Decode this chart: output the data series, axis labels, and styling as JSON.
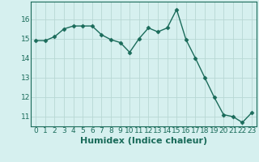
{
  "x": [
    0,
    1,
    2,
    3,
    4,
    5,
    6,
    7,
    8,
    9,
    10,
    11,
    12,
    13,
    14,
    15,
    16,
    17,
    18,
    19,
    20,
    21,
    22,
    23
  ],
  "y": [
    14.9,
    14.9,
    15.1,
    15.5,
    15.65,
    15.65,
    15.65,
    15.2,
    14.95,
    14.8,
    14.3,
    15.0,
    15.55,
    15.35,
    15.55,
    16.5,
    14.95,
    14.0,
    13.0,
    12.0,
    11.1,
    11.0,
    10.7,
    11.2
  ],
  "line_color": "#1a6b5a",
  "marker": "D",
  "marker_size": 2.5,
  "bg_color": "#d6f0ef",
  "grid_color": "#b8d8d4",
  "tick_color": "#1a6b5a",
  "spine_color": "#1a6b5a",
  "xlabel": "Humidex (Indice chaleur)",
  "ylim": [
    10.5,
    16.9
  ],
  "xlim": [
    -0.5,
    23.5
  ],
  "yticks": [
    11,
    12,
    13,
    14,
    15,
    16
  ],
  "xticks": [
    0,
    1,
    2,
    3,
    4,
    5,
    6,
    7,
    8,
    9,
    10,
    11,
    12,
    13,
    14,
    15,
    16,
    17,
    18,
    19,
    20,
    21,
    22,
    23
  ],
  "font_size": 6.5,
  "label_font_size": 8.0,
  "linewidth": 1.0
}
